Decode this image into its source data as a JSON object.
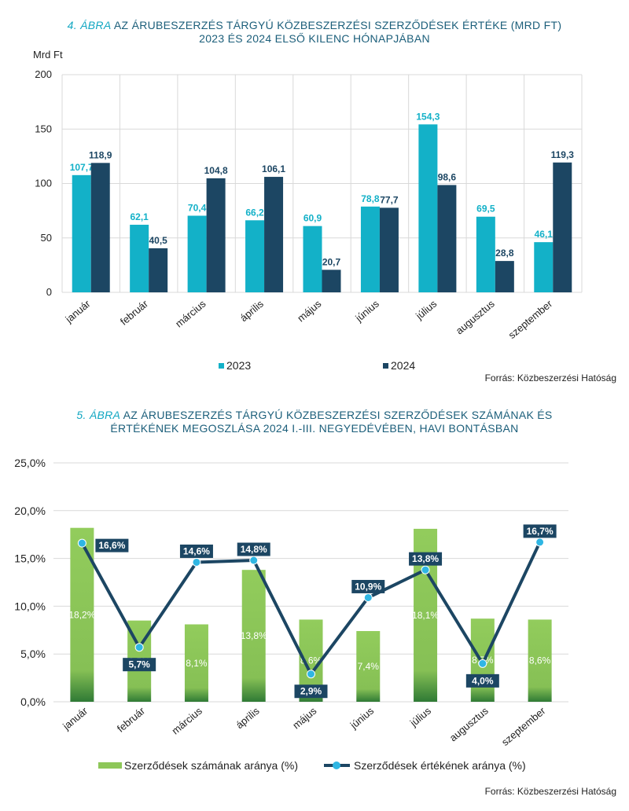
{
  "colors": {
    "title": "#1b5e7a",
    "title_number": "#12a7c2",
    "c2023": "#13b1c8",
    "c2024": "#1c4663",
    "bar_green": "#8ec759",
    "line_navy": "#1c4663",
    "marker": "#2fb6e3",
    "grid": "#d9d9d9"
  },
  "chart1": {
    "title_number": "4. ÁBRA",
    "title_rest": " AZ ÁRUBESZERZÉS TÁRGYÚ KÖZBESZERZÉSI SZERZŐDÉSEK ÉRTÉKE (MRD FT)",
    "title_line2": "2023 ÉS 2024 ELSŐ KILENC HÓNAPJÁBAN",
    "source": "Forrás: Közbeszerzési Hatóság"
  },
  "chart2": {
    "title_number": "5. ÁBRA",
    "title_rest": " AZ ÁRUBESZERZÉS TÁRGYÚ KÖZBESZERZÉSI SZERZŐDÉSEK SZÁMÁNAK ÉS",
    "title_line2": "ÉRTÉKÉNEK MEGOSZLÁSA 2024 I.-III. NEGYEDÉVÉBEN, HAVI BONTÁSBAN",
    "source": "Forrás: Közbeszerzési Hatóság"
  },
  "chart_data": [
    {
      "type": "bar",
      "ylabel": "Mrd Ft",
      "ylim": [
        0,
        200
      ],
      "yticks": [
        "0",
        "50",
        "100",
        "150",
        "200"
      ],
      "grid": true,
      "legend": "bottom",
      "categories": [
        "január",
        "február",
        "március",
        "április",
        "május",
        "június",
        "július",
        "augusztus",
        "szeptember"
      ],
      "series": [
        {
          "name": "2023",
          "values": [
            107.7,
            62.1,
            70.4,
            66.2,
            60.9,
            78.8,
            154.3,
            69.5,
            46.1
          ],
          "labels": [
            "107,7",
            "62,1",
            "70,4",
            "66,2",
            "60,9",
            "78,8",
            "154,3",
            "69,5",
            "46,1"
          ]
        },
        {
          "name": "2024",
          "values": [
            118.9,
            40.5,
            104.8,
            106.1,
            20.7,
            77.7,
            98.6,
            28.8,
            119.3
          ],
          "labels": [
            "118,9",
            "40,5",
            "104,8",
            "106,1",
            "20,7",
            "77,7",
            "98,6",
            "28,8",
            "119,3"
          ]
        }
      ]
    },
    {
      "type": "bar+line",
      "ylim": [
        0,
        25
      ],
      "yticks": [
        "0,0%",
        "5,0%",
        "10,0%",
        "15,0%",
        "20,0%",
        "25,0%"
      ],
      "grid": true,
      "legend": "bottom",
      "categories": [
        "január",
        "február",
        "március",
        "április",
        "május",
        "június",
        "július",
        "augusztus",
        "szeptember"
      ],
      "series": [
        {
          "name": "Szerződések számának aránya (%)",
          "kind": "bar",
          "values": [
            18.2,
            8.5,
            8.1,
            13.8,
            8.6,
            7.4,
            18.1,
            8.7,
            8.6
          ],
          "labels": [
            "18,2%",
            "8,5%",
            "8,1%",
            "13,8%",
            "8,6%",
            "7,4%",
            "18,1%",
            "8,7%",
            "8,6%"
          ]
        },
        {
          "name": "Szerződések értékének aránya (%)",
          "kind": "line",
          "values": [
            16.6,
            5.7,
            14.6,
            14.8,
            2.9,
            10.9,
            13.8,
            4.0,
            16.7
          ],
          "labels": [
            "16,6%",
            "5,7%",
            "14,6%",
            "14,8%",
            "2,9%",
            "10,9%",
            "13,8%",
            "4,0%",
            "16,7%"
          ]
        }
      ]
    }
  ]
}
